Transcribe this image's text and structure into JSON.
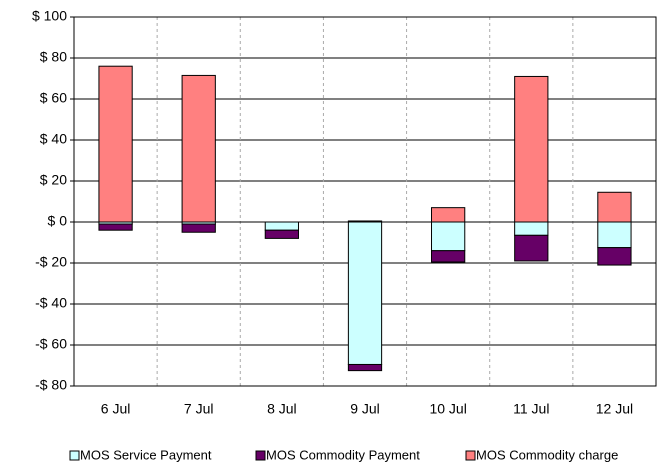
{
  "chart_data": {
    "type": "stacked-bar",
    "categories": [
      "6 Jul",
      "7 Jul",
      "8 Jul",
      "9 Jul",
      "10 Jul",
      "11 Jul",
      "12 Jul"
    ],
    "series": [
      {
        "name": "MOS Service Payment",
        "color": "#ccffff",
        "values": [
          -1,
          -1,
          -4,
          -69.5,
          -14,
          -6.5,
          -12.5
        ]
      },
      {
        "name": "MOS Commodity Payment",
        "color": "#660066",
        "values": [
          -3,
          -4,
          -4,
          -3,
          -5.5,
          -12.5,
          -8.5
        ]
      },
      {
        "name": "MOS Commodity charge",
        "color": "#ff8080",
        "values": [
          76,
          71.5,
          0,
          0.5,
          7,
          71,
          14.5
        ]
      }
    ],
    "ylim": [
      -80,
      100
    ],
    "yticks": [
      {
        "value": -80,
        "label": "-$ 80"
      },
      {
        "value": -60,
        "label": "-$ 60"
      },
      {
        "value": -40,
        "label": "-$ 40"
      },
      {
        "value": -20,
        "label": "-$ 20"
      },
      {
        "value": 0,
        "label": "$ 0"
      },
      {
        "value": 20,
        "label": "$ 20"
      },
      {
        "value": 40,
        "label": "$ 40"
      },
      {
        "value": 60,
        "label": "$ 60"
      },
      {
        "value": 80,
        "label": "$ 80"
      },
      {
        "value": 100,
        "label": "$ 100"
      }
    ],
    "grid": true,
    "legend": "bottom"
  }
}
